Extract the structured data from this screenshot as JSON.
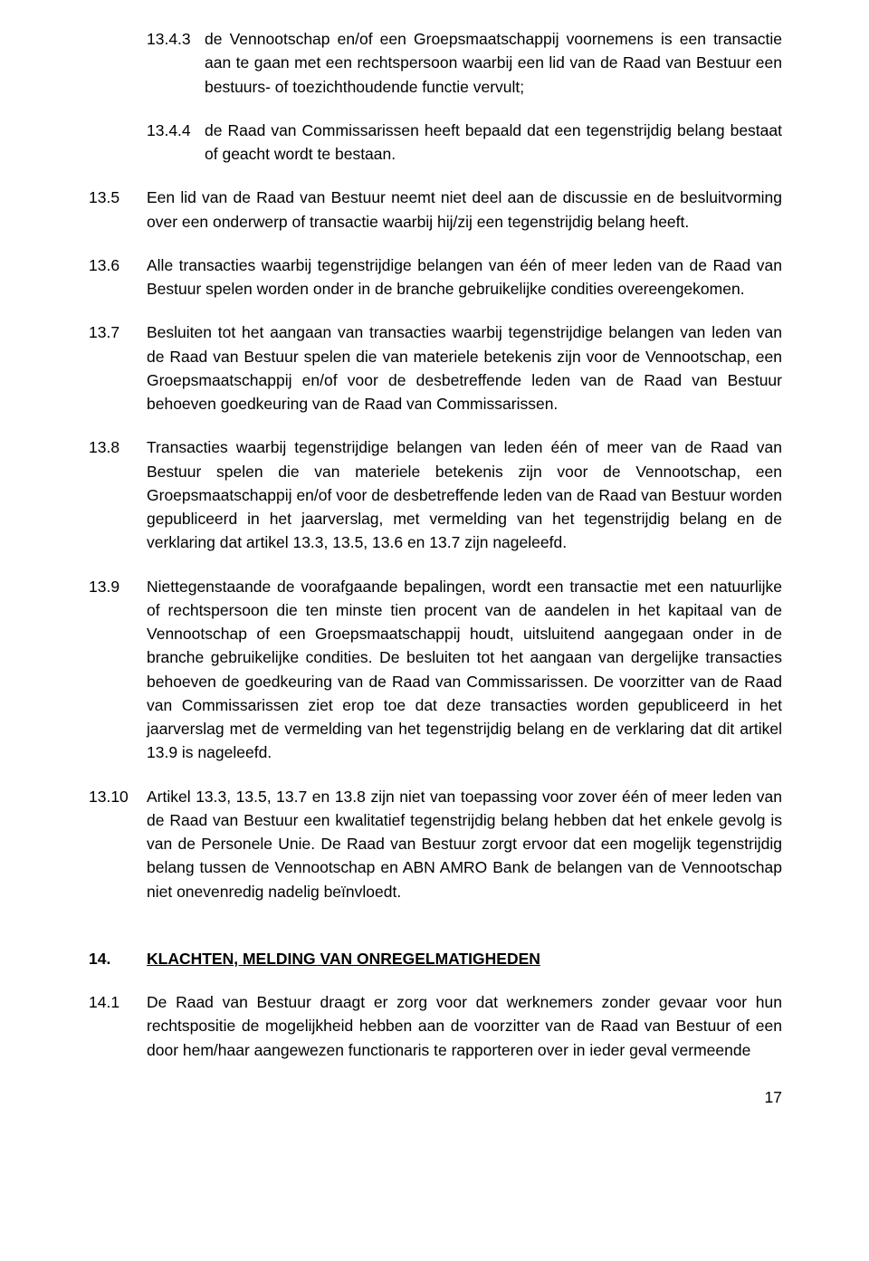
{
  "items": [
    {
      "num": "13.4.3",
      "sub": true,
      "text": "de Vennootschap en/of een Groepsmaatschappij voornemens is een transactie aan te gaan met een rechtspersoon waarbij een lid van de Raad van Bestuur een bestuurs- of toezichthoudende functie vervult;"
    },
    {
      "num": "13.4.4",
      "sub": true,
      "text": "de Raad van Commissarissen heeft bepaald dat een tegenstrijdig belang bestaat of geacht wordt te bestaan."
    },
    {
      "num": "13.5",
      "sub": false,
      "text": "Een lid van de Raad van Bestuur neemt niet deel aan de discussie en de besluitvorming over een onderwerp of transactie waarbij hij/zij een tegenstrijdig belang heeft."
    },
    {
      "num": "13.6",
      "sub": false,
      "text": "Alle transacties waarbij tegenstrijdige belangen van één of meer leden van de Raad van Bestuur spelen worden onder in de branche gebruikelijke condities overeengekomen."
    },
    {
      "num": "13.7",
      "sub": false,
      "text": "Besluiten tot het aangaan van transacties waarbij tegenstrijdige belangen van leden van de Raad van Bestuur spelen die van materiele betekenis zijn voor de Vennootschap, een Groepsmaatschappij en/of voor de desbetreffende leden van de Raad van Bestuur behoeven goedkeuring van de Raad van Commissarissen."
    },
    {
      "num": "13.8",
      "sub": false,
      "text": "Transacties waarbij tegenstrijdige belangen van leden één of meer van de Raad van Bestuur spelen die van materiele betekenis zijn voor de Vennootschap, een Groepsmaatschappij en/of voor de desbetreffende leden van de Raad van Bestuur worden gepubliceerd in het jaarverslag, met vermelding van het tegenstrijdig belang en de verklaring dat artikel 13.3, 13.5, 13.6 en 13.7 zijn nageleefd."
    },
    {
      "num": "13.9",
      "sub": false,
      "text": "Niettegenstaande de voorafgaande bepalingen, wordt een transactie met een natuurlijke of rechtspersoon die ten minste tien procent van de aandelen in het kapitaal van de Vennootschap of een Groepsmaatschappij houdt, uitsluitend aangegaan onder in de branche gebruikelijke condities. De besluiten tot het aangaan van dergelijke transacties behoeven de goedkeuring van de Raad van Commissarissen. De voorzitter van de Raad van Commissarissen ziet erop toe dat deze transacties worden gepubliceerd in het jaarverslag met de vermelding van het tegenstrijdig belang en de verklaring dat dit artikel 13.9 is nageleefd."
    },
    {
      "num": "13.10",
      "sub": false,
      "text": "Artikel 13.3, 13.5, 13.7 en 13.8 zijn niet van toepassing voor zover één of meer leden van de Raad van Bestuur een kwalitatief tegenstrijdig belang hebben dat het enkele gevolg is van de Personele Unie. De Raad van Bestuur zorgt ervoor dat een mogelijk tegenstrijdig belang tussen de Vennootschap en ABN AMRO Bank de belangen van de Vennootschap niet onevenredig nadelig beïnvloedt."
    }
  ],
  "section": {
    "num": "14.",
    "title": "KLACHTEN, MELDING VAN ONREGELMATIGHEDEN"
  },
  "section_items": [
    {
      "num": "14.1",
      "sub": false,
      "text": "De Raad van Bestuur draagt er zorg voor dat werknemers zonder gevaar voor hun rechtspositie de mogelijkheid hebben aan de voorzitter van de Raad van Bestuur of een door hem/haar aangewezen functionaris te rapporteren over in ieder geval vermeende"
    }
  ],
  "page_number": "17"
}
